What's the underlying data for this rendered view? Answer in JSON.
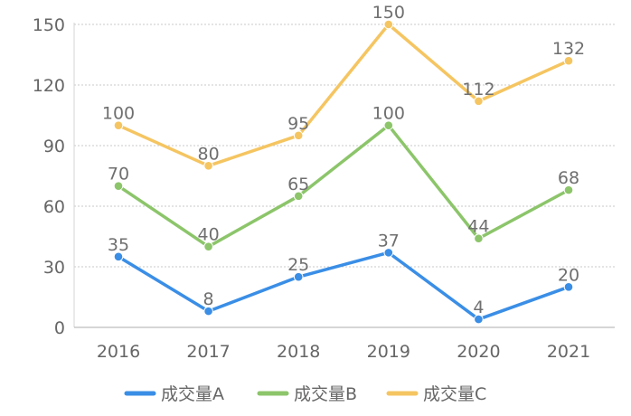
{
  "chart_data": {
    "type": "line",
    "categories": [
      "2016",
      "2017",
      "2018",
      "2019",
      "2020",
      "2021"
    ],
    "ylim": [
      0,
      150
    ],
    "yticks": [
      0,
      30,
      60,
      90,
      120,
      150
    ],
    "grid": true,
    "legend_position": "bottom-center",
    "series": [
      {
        "name": "成交量A",
        "color": "#3a8ee6",
        "values": [
          35,
          8,
          25,
          37,
          4,
          20
        ]
      },
      {
        "name": "成交量B",
        "color": "#8cc56a",
        "values": [
          70,
          40,
          65,
          100,
          44,
          68
        ]
      },
      {
        "name": "成交量C",
        "color": "#f5c561",
        "values": [
          100,
          80,
          95,
          150,
          112,
          132
        ]
      }
    ]
  }
}
